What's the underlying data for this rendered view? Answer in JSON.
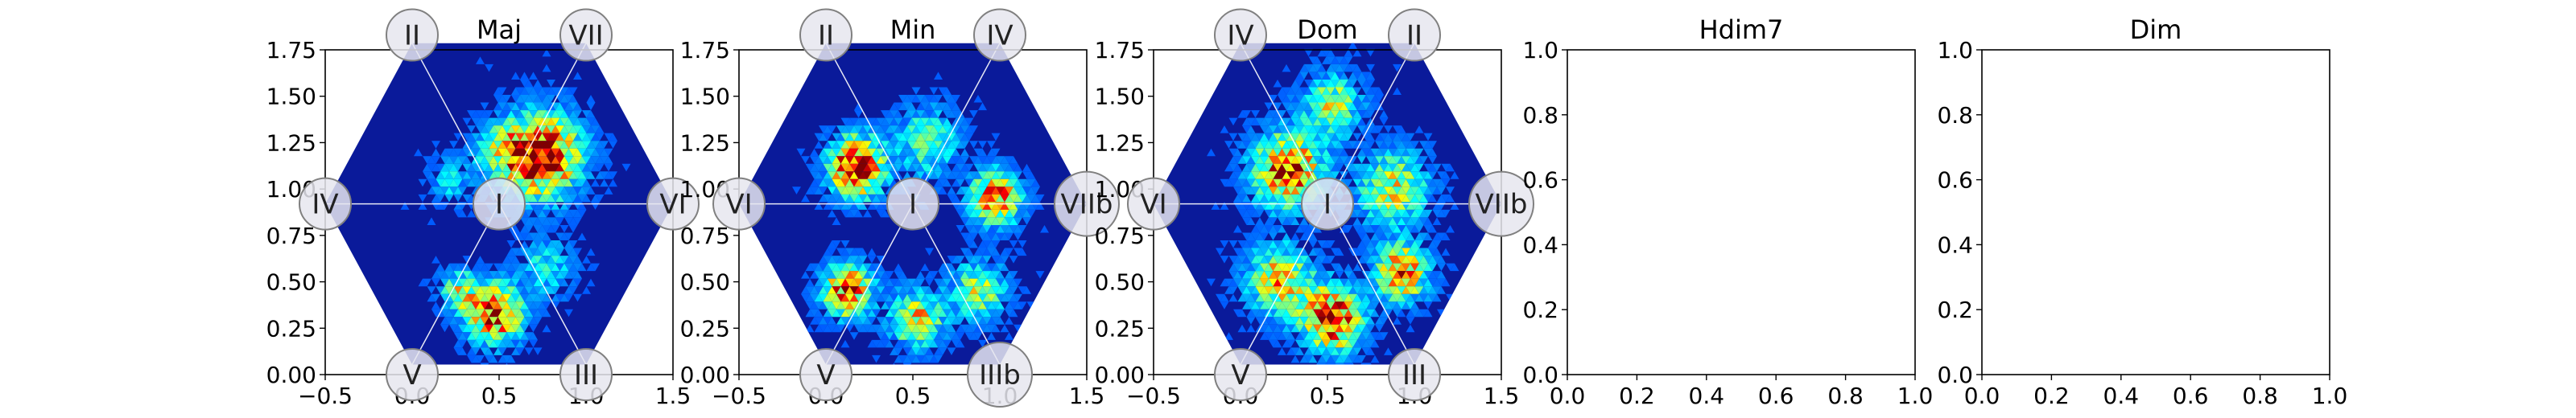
{
  "figure": {
    "colormap": "jet",
    "background": "#ffffff",
    "axis_color": "#000000"
  },
  "chart_data": [
    {
      "type": "hexagonal-heatmap",
      "title": "Maj",
      "xlim": [
        -0.5,
        1.5
      ],
      "ylim": [
        0.0,
        1.75
      ],
      "xticks": [
        "−0.5",
        "0.0",
        "0.5",
        "1.0",
        "1.5"
      ],
      "yticks": [
        "0.00",
        "0.25",
        "0.50",
        "0.75",
        "1.00",
        "1.25",
        "1.50",
        "1.75"
      ],
      "hexagon": {
        "center": [
          0.5,
          0.92
        ],
        "radius": 1.0
      },
      "degree_labels": [
        {
          "label": "II",
          "x": 0.0,
          "y": 1.83
        },
        {
          "label": "VII",
          "x": 1.0,
          "y": 1.83
        },
        {
          "label": "IV",
          "x": -0.5,
          "y": 0.92
        },
        {
          "label": "I",
          "x": 0.5,
          "y": 0.92
        },
        {
          "label": "VI",
          "x": 1.5,
          "y": 0.92
        },
        {
          "label": "V",
          "x": 0.0,
          "y": 0.0
        },
        {
          "label": "III",
          "x": 1.0,
          "y": 0.0
        }
      ],
      "hotspots": [
        {
          "x": 0.72,
          "y": 1.18,
          "intensity": 1.0,
          "spread": 0.14
        },
        {
          "x": 0.5,
          "y": 1.2,
          "intensity": 0.35,
          "spread": 0.1
        },
        {
          "x": 0.2,
          "y": 1.05,
          "intensity": 0.2,
          "spread": 0.08
        },
        {
          "x": 0.45,
          "y": 0.33,
          "intensity": 0.85,
          "spread": 0.1
        },
        {
          "x": 0.25,
          "y": 0.45,
          "intensity": 0.45,
          "spread": 0.07
        },
        {
          "x": 0.75,
          "y": 0.58,
          "intensity": 0.25,
          "spread": 0.1
        }
      ]
    },
    {
      "type": "hexagonal-heatmap",
      "title": "Min",
      "xlim": [
        -0.5,
        1.5
      ],
      "ylim": [
        0.0,
        1.75
      ],
      "xticks": [
        "−0.5",
        "0.0",
        "0.5",
        "1.0",
        "1.5"
      ],
      "yticks": [
        "0.00",
        "0.25",
        "0.50",
        "0.75",
        "1.00",
        "1.25",
        "1.50",
        "1.75"
      ],
      "hexagon": {
        "center": [
          0.5,
          0.92
        ],
        "radius": 1.0
      },
      "degree_labels": [
        {
          "label": "II",
          "x": 0.0,
          "y": 1.83
        },
        {
          "label": "IV",
          "x": 1.0,
          "y": 1.83
        },
        {
          "label": "VI",
          "x": -0.5,
          "y": 0.92
        },
        {
          "label": "I",
          "x": 0.5,
          "y": 0.92
        },
        {
          "label": "VIIb",
          "x": 1.5,
          "y": 0.92
        },
        {
          "label": "V",
          "x": 0.0,
          "y": 0.0
        },
        {
          "label": "IIIb",
          "x": 1.0,
          "y": 0.0
        }
      ],
      "hotspots": [
        {
          "x": 0.15,
          "y": 1.12,
          "intensity": 1.0,
          "spread": 0.1
        },
        {
          "x": 0.55,
          "y": 1.25,
          "intensity": 0.35,
          "spread": 0.12
        },
        {
          "x": 0.95,
          "y": 0.95,
          "intensity": 0.75,
          "spread": 0.09
        },
        {
          "x": 0.1,
          "y": 0.45,
          "intensity": 0.8,
          "spread": 0.09
        },
        {
          "x": 0.5,
          "y": 0.3,
          "intensity": 0.55,
          "spread": 0.1
        },
        {
          "x": 0.85,
          "y": 0.45,
          "intensity": 0.45,
          "spread": 0.1
        }
      ]
    },
    {
      "type": "hexagonal-heatmap",
      "title": "Dom",
      "xlim": [
        -0.5,
        1.5
      ],
      "ylim": [
        0.0,
        1.75
      ],
      "xticks": [
        "−0.5",
        "0.0",
        "0.5",
        "1.0",
        "1.5"
      ],
      "yticks": [
        "0.00",
        "0.25",
        "0.50",
        "0.75",
        "1.00",
        "1.25",
        "1.50",
        "1.75"
      ],
      "hexagon": {
        "center": [
          0.5,
          0.92
        ],
        "radius": 1.0
      },
      "degree_labels": [
        {
          "label": "IV",
          "x": 0.0,
          "y": 1.83
        },
        {
          "label": "II",
          "x": 1.0,
          "y": 1.83
        },
        {
          "label": "VI",
          "x": -0.5,
          "y": 0.92
        },
        {
          "label": "I",
          "x": 0.5,
          "y": 0.92
        },
        {
          "label": "VIIb",
          "x": 1.5,
          "y": 0.92
        },
        {
          "label": "V",
          "x": 0.0,
          "y": 0.0
        },
        {
          "label": "III",
          "x": 1.0,
          "y": 0.0
        }
      ],
      "hotspots": [
        {
          "x": 0.25,
          "y": 1.1,
          "intensity": 0.8,
          "spread": 0.13
        },
        {
          "x": 0.5,
          "y": 1.45,
          "intensity": 0.45,
          "spread": 0.11
        },
        {
          "x": 0.85,
          "y": 1.0,
          "intensity": 0.5,
          "spread": 0.13
        },
        {
          "x": 0.2,
          "y": 0.5,
          "intensity": 0.6,
          "spread": 0.12
        },
        {
          "x": 0.5,
          "y": 0.3,
          "intensity": 0.9,
          "spread": 0.11
        },
        {
          "x": 0.9,
          "y": 0.55,
          "intensity": 0.7,
          "spread": 0.1
        }
      ]
    },
    {
      "type": "empty",
      "title": "Hdim7",
      "xlim": [
        0.0,
        1.0
      ],
      "ylim": [
        0.0,
        1.0
      ],
      "xticks": [
        "0.0",
        "0.2",
        "0.4",
        "0.6",
        "0.8",
        "1.0"
      ],
      "yticks": [
        "0.0",
        "0.2",
        "0.4",
        "0.6",
        "0.8",
        "1.0"
      ]
    },
    {
      "type": "empty",
      "title": "Dim",
      "xlim": [
        0.0,
        1.0
      ],
      "ylim": [
        0.0,
        1.0
      ],
      "xticks": [
        "0.0",
        "0.2",
        "0.4",
        "0.6",
        "0.8",
        "1.0"
      ],
      "yticks": [
        "0.0",
        "0.2",
        "0.4",
        "0.6",
        "0.8",
        "1.0"
      ]
    }
  ]
}
